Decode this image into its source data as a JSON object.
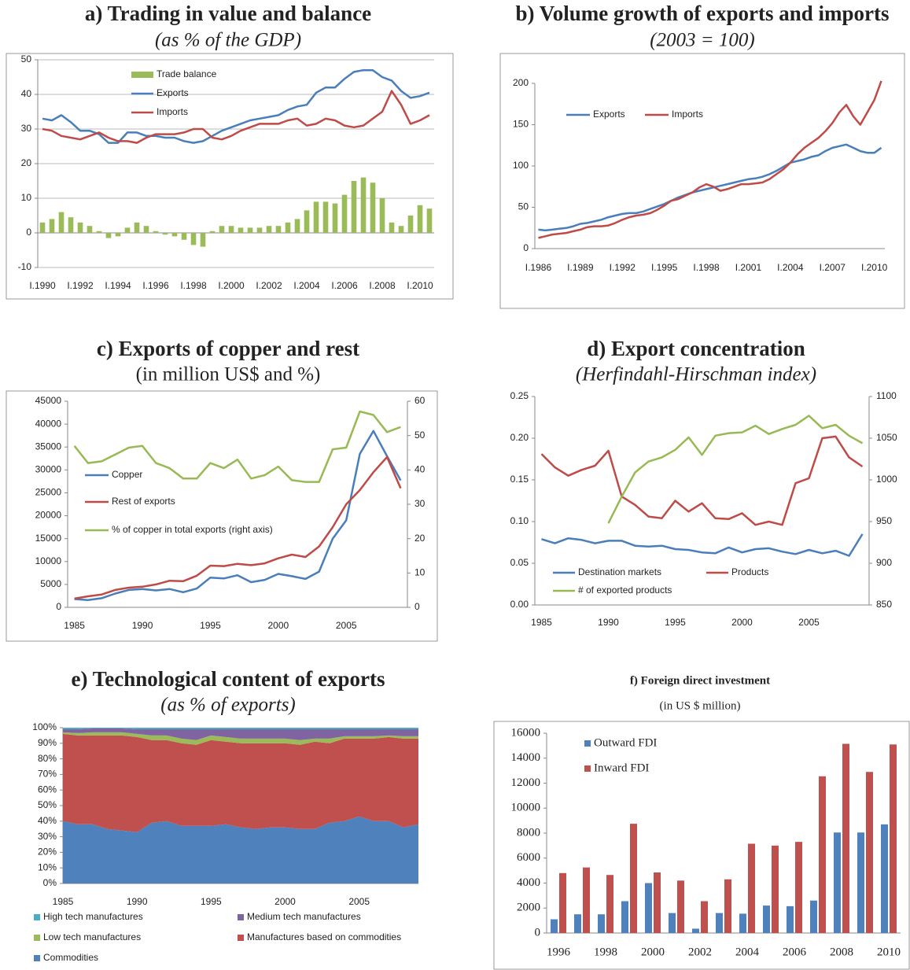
{
  "chart_data": [
    {
      "type": "line",
      "title": "a) Trading in value and balance",
      "subtitle": "(as % of the GDP)",
      "grid": true,
      "categories": [
        "I.1990",
        null,
        null,
        null,
        "I.1992",
        null,
        null,
        null,
        "I.1994",
        null,
        null,
        null,
        "I.1996",
        null,
        null,
        null,
        "I.1998",
        null,
        null,
        null,
        "I.2000",
        null,
        null,
        null,
        "I.2002",
        null,
        null,
        null,
        "I.2004",
        null,
        null,
        null,
        "I.2006",
        null,
        null,
        null,
        "I.2008",
        null,
        null,
        null,
        "I.2010",
        null
      ],
      "ylim": [
        -10,
        50
      ],
      "yticks": [
        -10,
        0,
        10,
        20,
        30,
        40,
        50
      ],
      "series": [
        {
          "name": "Trade balance",
          "type": "bar",
          "color": "#9bbb59",
          "values": [
            3,
            4,
            6,
            4.5,
            3,
            2,
            0.5,
            -1.5,
            -1,
            1.5,
            3,
            2,
            0.5,
            -0.5,
            -1,
            -2,
            -3.5,
            -4,
            0.5,
            2,
            2,
            1.5,
            1.5,
            1.5,
            2,
            2,
            3,
            4,
            6.5,
            9,
            9,
            8.5,
            11,
            15,
            16,
            14.5,
            10,
            3,
            2,
            5,
            8,
            7
          ]
        },
        {
          "name": "Exports",
          "color": "#4a7ebb",
          "values": [
            33,
            32.5,
            34,
            32,
            29.5,
            29.5,
            28.5,
            26,
            26,
            29,
            29,
            28,
            28,
            27.5,
            27.5,
            26.5,
            26,
            26.5,
            28,
            29.5,
            30.5,
            31.5,
            32.5,
            33,
            33.5,
            34,
            35.5,
            36.5,
            37,
            40.5,
            42,
            42,
            44.5,
            46.5,
            47,
            47,
            45,
            44,
            41,
            39,
            39.5,
            40.5
          ]
        },
        {
          "name": "Imports",
          "color": "#be4b48",
          "values": [
            30,
            29.5,
            28,
            27.5,
            27,
            28,
            29,
            27.5,
            26.5,
            26.5,
            26,
            27.5,
            28.5,
            28.5,
            28.5,
            29,
            30,
            30,
            27.5,
            27,
            28,
            29.5,
            30.5,
            31.5,
            31.5,
            31.5,
            32.5,
            33,
            31,
            31.5,
            33,
            32.5,
            31,
            30.5,
            31,
            33,
            35,
            41,
            37,
            31.5,
            32.5,
            34
          ]
        }
      ]
    },
    {
      "type": "line",
      "title": "b) Volume growth of exports and imports",
      "subtitle": "(2003 = 100)",
      "categories": [
        "I.1986",
        null,
        null,
        null,
        null,
        null,
        "I.1989",
        null,
        null,
        null,
        null,
        null,
        "I.1992",
        null,
        null,
        null,
        null,
        null,
        "I.1995",
        null,
        null,
        null,
        null,
        null,
        "I.1998",
        null,
        null,
        null,
        null,
        null,
        "I.2001",
        null,
        null,
        null,
        null,
        null,
        "I.2004",
        null,
        null,
        null,
        null,
        null,
        "I.2007",
        null,
        null,
        null,
        null,
        null,
        "I.2010",
        null
      ],
      "ylim": [
        0,
        200
      ],
      "yticks": [
        0,
        50,
        100,
        150,
        200
      ],
      "series": [
        {
          "name": "Exports",
          "color": "#4a7ebb",
          "values": [
            23,
            22,
            23,
            24,
            25,
            27,
            30,
            31,
            33,
            35,
            38,
            40,
            42,
            43,
            43,
            45,
            48,
            51,
            54,
            58,
            62,
            65,
            68,
            70,
            72,
            74,
            76,
            78,
            80,
            82,
            84,
            85,
            87,
            90,
            94,
            99,
            104,
            106,
            108,
            111,
            113,
            118,
            122,
            124,
            126,
            122,
            118,
            116,
            116,
            122
          ]
        },
        {
          "name": "Imports",
          "color": "#be4b48",
          "values": [
            13,
            15,
            17,
            18,
            19,
            21,
            23,
            26,
            27,
            27,
            28,
            31,
            35,
            38,
            40,
            41,
            43,
            47,
            52,
            58,
            60,
            64,
            68,
            74,
            78,
            75,
            70,
            72,
            75,
            78,
            78,
            79,
            80,
            84,
            90,
            96,
            104,
            114,
            122,
            128,
            134,
            142,
            152,
            165,
            174,
            160,
            150,
            165,
            180,
            203
          ]
        }
      ]
    },
    {
      "type": "line",
      "title": "c) Exports of copper and rest",
      "subtitle": "(in million US$ and %)",
      "categories": [
        "1985",
        null,
        null,
        null,
        null,
        "1990",
        null,
        null,
        null,
        null,
        "1995",
        null,
        null,
        null,
        null,
        "2000",
        null,
        null,
        null,
        null,
        "2005",
        null,
        null,
        null,
        null
      ],
      "ylim": [
        0,
        45000
      ],
      "yticks": [
        0,
        5000,
        10000,
        15000,
        20000,
        25000,
        30000,
        35000,
        40000,
        45000
      ],
      "y2lim": [
        0,
        60
      ],
      "y2ticks": [
        0,
        10,
        20,
        30,
        40,
        50,
        60
      ],
      "series": [
        {
          "name": "Copper",
          "color": "#4a7ebb",
          "values": [
            1800,
            1600,
            2000,
            3000,
            3800,
            4000,
            3700,
            4000,
            3300,
            4100,
            6500,
            6300,
            7000,
            5500,
            6000,
            7300,
            6800,
            6200,
            7800,
            15000,
            19000,
            33500,
            38500,
            33000,
            27700
          ]
        },
        {
          "name": "Rest of exports",
          "color": "#be4b48",
          "values": [
            1900,
            2400,
            2800,
            3800,
            4300,
            4500,
            5000,
            5800,
            5700,
            6900,
            9100,
            9000,
            9500,
            9200,
            9600,
            10700,
            11500,
            11000,
            13300,
            17500,
            22500,
            25600,
            29500,
            32800,
            26000
          ]
        },
        {
          "name": "% of copper in total exports (right axis)",
          "color": "#98b954",
          "axis": "y2",
          "values": [
            47,
            42,
            42.5,
            44.5,
            46.5,
            47,
            42,
            40.5,
            37.5,
            37.5,
            42,
            40.5,
            43,
            37.5,
            38.5,
            41,
            37,
            36.5,
            36.5,
            46,
            46.5,
            57,
            56,
            51,
            52.5
          ]
        }
      ]
    },
    {
      "type": "line",
      "title": "d) Export concentration",
      "subtitle": "(Herfindahl-Hirschman index)",
      "categories": [
        "1985",
        null,
        null,
        null,
        null,
        "1990",
        null,
        null,
        null,
        null,
        "1995",
        null,
        null,
        null,
        null,
        "2000",
        null,
        null,
        null,
        null,
        "2005",
        null,
        null,
        null,
        null
      ],
      "ylim": [
        0,
        0.25
      ],
      "yticks": [
        {
          "value": 0,
          "label": "0.00"
        },
        0.05,
        {
          "value": 0.1,
          "label": "0.10"
        },
        0.15,
        {
          "value": 0.2,
          "label": "0.20"
        },
        0.25
      ],
      "y2lim": [
        850,
        1100
      ],
      "y2ticks": [
        850,
        900,
        950,
        1000,
        1050,
        1100
      ],
      "series": [
        {
          "name": "Destination markets",
          "color": "#4a7ebb",
          "values": [
            0.079,
            0.074,
            0.08,
            0.078,
            0.074,
            0.077,
            0.077,
            0.071,
            0.07,
            0.071,
            0.067,
            0.066,
            0.063,
            0.062,
            0.069,
            0.063,
            0.067,
            0.068,
            0.064,
            0.061,
            0.066,
            0.062,
            0.065,
            0.059,
            0.085
          ]
        },
        {
          "name": "Products",
          "color": "#be4b48",
          "values": [
            0.181,
            0.165,
            0.155,
            0.162,
            0.167,
            0.185,
            0.13,
            0.12,
            0.106,
            0.104,
            0.125,
            0.112,
            0.122,
            0.104,
            0.103,
            0.11,
            0.096,
            0.1,
            0.096,
            0.146,
            0.152,
            0.2,
            0.202,
            0.177,
            0.166
          ]
        },
        {
          "name": "# of exported products",
          "color": "#98b954",
          "axis": "y2",
          "values": [
            null,
            null,
            null,
            null,
            null,
            948,
            980,
            1009,
            1022,
            1027,
            1036,
            1051,
            1030,
            1053,
            1056,
            1057,
            1065,
            1055,
            1061,
            1066,
            1077,
            1062,
            1066,
            1053,
            1044
          ]
        }
      ]
    },
    {
      "type": "area",
      "title": "e) Technological content of exports",
      "subtitle": "(as % of exports)",
      "categories": [
        "1985",
        null,
        null,
        null,
        null,
        "1990",
        null,
        null,
        null,
        null,
        "1995",
        null,
        null,
        null,
        null,
        "2000",
        null,
        null,
        null,
        null,
        "2005",
        null,
        null,
        null,
        null
      ],
      "ylim": [
        0,
        100
      ],
      "yticks": [
        {
          "value": 0,
          "label": "0%"
        },
        {
          "value": 10,
          "label": "10%"
        },
        {
          "value": 20,
          "label": "20%"
        },
        {
          "value": 30,
          "label": "30%"
        },
        {
          "value": 40,
          "label": "40%"
        },
        {
          "value": 50,
          "label": "50%"
        },
        {
          "value": 60,
          "label": "60%"
        },
        {
          "value": 70,
          "label": "70%"
        },
        {
          "value": 80,
          "label": "80%"
        },
        {
          "value": 90,
          "label": "90%"
        },
        {
          "value": 100,
          "label": "100%"
        }
      ],
      "series": [
        {
          "name": "Commodities",
          "color": "#4f81bd",
          "values": [
            40,
            38,
            38,
            35,
            34,
            33,
            39,
            40,
            37,
            37,
            37,
            38,
            36,
            35,
            36,
            36,
            35,
            35,
            39,
            40,
            43,
            40,
            40,
            36,
            38
          ]
        },
        {
          "name": "Manufactures based on commodities",
          "color": "#c0504d",
          "values": [
            56,
            57,
            57,
            60,
            61,
            61,
            53,
            52,
            53,
            52,
            55,
            53,
            54,
            55,
            54,
            54,
            54,
            56,
            51,
            53,
            50,
            53,
            54,
            57,
            55
          ]
        },
        {
          "name": "Low tech manufactures",
          "color": "#9bbb59",
          "values": [
            1,
            1.5,
            2,
            2,
            2,
            2,
            3,
            3,
            3,
            3,
            3,
            3,
            3,
            3,
            3,
            3,
            3,
            2,
            3,
            1.5,
            1.5,
            1.5,
            1,
            1.5,
            1.5
          ]
        },
        {
          "name": "Medium tech manufactures",
          "color": "#8064a2",
          "values": [
            2,
            2.5,
            2.5,
            2.5,
            2.5,
            3,
            4,
            4,
            6,
            7,
            4,
            5,
            6,
            6,
            6,
            6,
            7,
            6,
            6,
            4.5,
            4.5,
            4.5,
            4,
            4.5,
            4.5
          ]
        },
        {
          "name": "High tech manufactures",
          "color": "#4bacc6",
          "values": [
            1,
            1,
            0.5,
            0.5,
            0.5,
            1,
            1,
            1,
            1,
            1,
            1,
            1,
            1,
            1,
            1,
            1,
            1,
            1,
            1,
            1,
            1,
            1,
            1,
            1,
            1
          ]
        }
      ]
    },
    {
      "type": "bar",
      "title": "f) Foreign direct investment",
      "subtitle": "(in US $ million)",
      "categories": [
        "1996",
        null,
        "1998",
        null,
        "2000",
        null,
        "2002",
        null,
        "2004",
        null,
        "2006",
        null,
        "2008",
        null,
        "2010"
      ],
      "ylim": [
        0,
        16000
      ],
      "yticks": [
        0,
        2000,
        4000,
        6000,
        8000,
        10000,
        12000,
        14000,
        16000
      ],
      "series": [
        {
          "name": "Outward FDI",
          "color": "#4f81bd",
          "values": [
            1100,
            1500,
            1500,
            2550,
            4000,
            1600,
            350,
            1600,
            1550,
            2200,
            2150,
            2600,
            8050,
            8050,
            8700
          ]
        },
        {
          "name": "Inward FDI",
          "color": "#c0504d",
          "values": [
            4800,
            5250,
            4650,
            8750,
            4850,
            4200,
            2550,
            4300,
            7150,
            7000,
            7300,
            12550,
            15150,
            12900,
            15100
          ]
        }
      ]
    }
  ]
}
